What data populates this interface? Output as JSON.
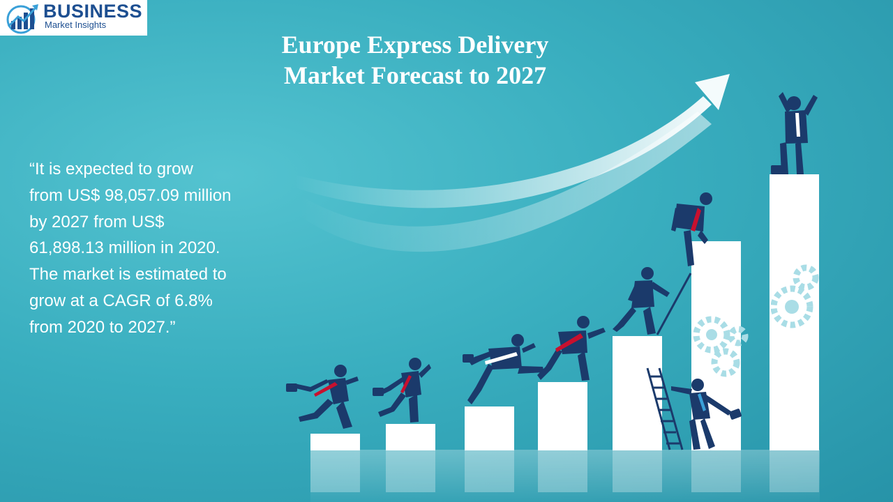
{
  "logo": {
    "brand_word": "BUSINESS",
    "brand_sub": "Market Insights",
    "icon": "bar-chart-globe-icon",
    "colors": {
      "primary": "#1d4f91",
      "accent": "#3aa0d8"
    }
  },
  "title": {
    "line1": "Europe Express Delivery",
    "line2": "Market Forecast to 2027"
  },
  "quote": {
    "lines": [
      "“It is expected to grow",
      "from US$ 98,057.09 million",
      "by 2027 from US$",
      "61,898.13 million in 2020.",
      "The market is estimated to",
      "grow at a CAGR of 6.8%",
      "from 2020 to 2027.”"
    ]
  },
  "illustration": {
    "subject": "business people climbing rising bars toward growth arrow",
    "icons": [
      "growth-arrow-icon",
      "gear-icon",
      "briefcase-icon",
      "ladder-icon"
    ],
    "colors": {
      "figure": "#1b3a6b",
      "tie": "#c8102e",
      "bars": "#ffffff"
    }
  }
}
